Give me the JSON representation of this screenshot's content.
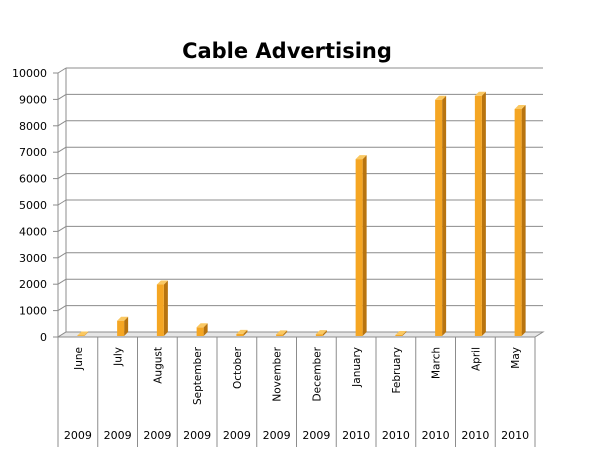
{
  "chart_data": {
    "type": "bar",
    "title": "Cable Advertising",
    "categories": [
      {
        "month": "June",
        "year": "2009"
      },
      {
        "month": "July",
        "year": "2009"
      },
      {
        "month": "August",
        "year": "2009"
      },
      {
        "month": "September",
        "year": "2009"
      },
      {
        "month": "October",
        "year": "2009"
      },
      {
        "month": "November",
        "year": "2009"
      },
      {
        "month": "December",
        "year": "2009"
      },
      {
        "month": "January",
        "year": "2010"
      },
      {
        "month": "February",
        "year": "2010"
      },
      {
        "month": "March",
        "year": "2010"
      },
      {
        "month": "April",
        "year": "2010"
      },
      {
        "month": "May",
        "year": "2010"
      }
    ],
    "values": [
      20,
      580,
      1950,
      330,
      80,
      60,
      70,
      6700,
      40,
      8950,
      9100,
      8600
    ],
    "ylim": [
      0,
      10000
    ],
    "yticks": [
      "0",
      "1000",
      "2000",
      "3000",
      "4000",
      "5000",
      "6000",
      "7000",
      "8000",
      "9000",
      "10000"
    ],
    "grid": true,
    "legend": "none",
    "bar_color": "#F5A623",
    "bar_side_color": "#B8740F",
    "bar_top_color": "#FAC862"
  }
}
